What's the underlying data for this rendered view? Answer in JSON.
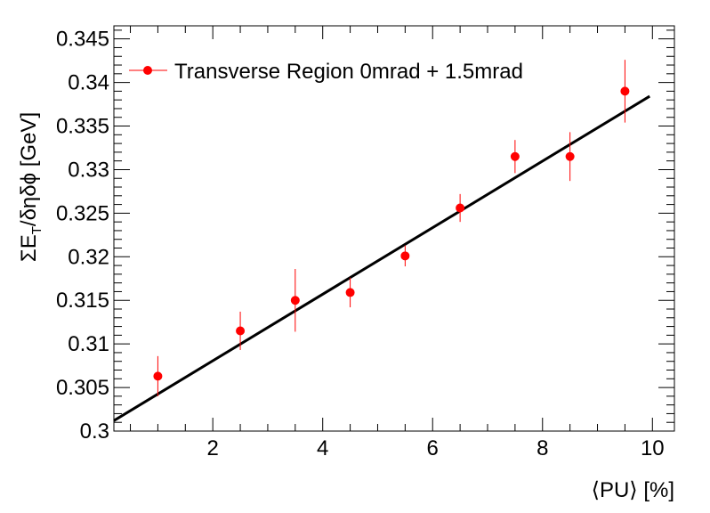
{
  "chart_data": {
    "type": "scatter",
    "title": "",
    "xlabel": "⟨PU⟩ [%]",
    "ylabel_parts": {
      "pre": "ΣE",
      "sub": "T",
      "post": "/δηδϕ [GeV]"
    },
    "xlim": [
      0.2,
      10.4
    ],
    "ylim": [
      0.3,
      0.3465
    ],
    "x_major_ticks": [
      2,
      4,
      6,
      8,
      10
    ],
    "x_tick_labels": [
      "2",
      "4",
      "6",
      "8",
      "10"
    ],
    "x_minor_step": 0.5,
    "y_major_ticks": [
      0.3,
      0.305,
      0.31,
      0.315,
      0.32,
      0.325,
      0.33,
      0.335,
      0.34,
      0.345
    ],
    "y_tick_labels": [
      "0.3",
      "0.305",
      "0.31",
      "0.315",
      "0.32",
      "0.325",
      "0.33",
      "0.335",
      "0.34",
      "0.345"
    ],
    "y_minor_step": 0.001,
    "grid": false,
    "legend": {
      "placement": "top-left",
      "entries": [
        "Transverse Region 0mrad + 1.5mrad"
      ]
    },
    "series": [
      {
        "name": "Transverse Region 0mrad + 1.5mrad",
        "color": "#ff0000",
        "x": [
          1.0,
          2.5,
          3.5,
          4.5,
          5.5,
          6.5,
          7.5,
          8.5,
          9.5
        ],
        "y": [
          0.3063,
          0.3115,
          0.315,
          0.3159,
          0.3201,
          0.3256,
          0.3315,
          0.3315,
          0.339
        ],
        "y_err": [
          0.0023,
          0.0022,
          0.0036,
          0.0017,
          0.0012,
          0.0016,
          0.0019,
          0.0028,
          0.0036
        ]
      }
    ],
    "fit": {
      "name": "linear fit",
      "color": "#000000",
      "x_range": [
        0.2,
        9.95
      ],
      "slope": 0.003818,
      "intercept": 0.30043
    }
  }
}
